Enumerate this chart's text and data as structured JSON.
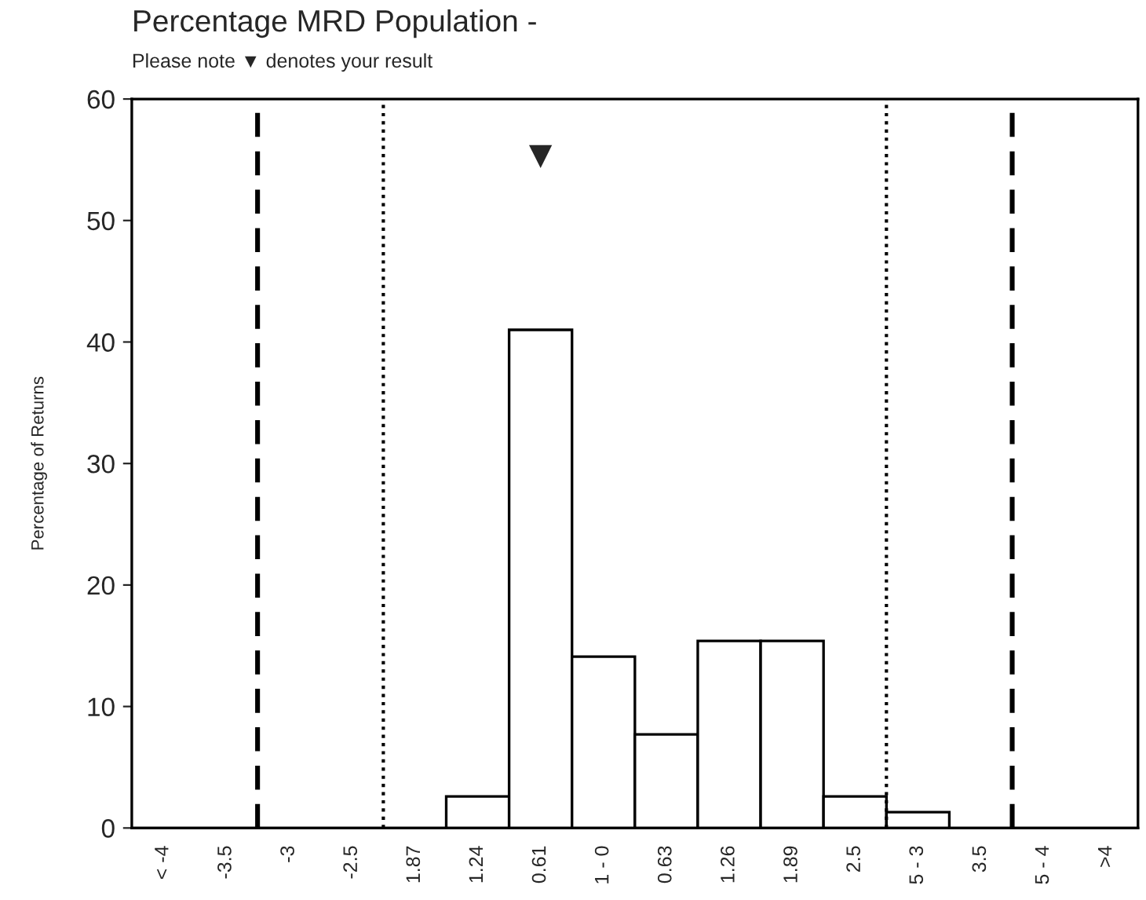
{
  "chart_data": {
    "type": "bar",
    "title": "Percentage MRD Population -",
    "subtitle": "Please note ▼ denotes your result",
    "ylabel": "Percentage of Returns",
    "categories": [
      "< -4",
      "-3.5",
      "-3",
      "-2.5",
      "1.87",
      "1.24",
      "0.61",
      "1 - 0",
      "0.63",
      "1.26",
      "1.89",
      "2.5",
      "5 - 3",
      "3.5",
      "5 - 4",
      ">4"
    ],
    "values": [
      0,
      0,
      0,
      0,
      0,
      2.6,
      41,
      14.1,
      7.7,
      15.4,
      15.4,
      2.6,
      1.3,
      0,
      0,
      0
    ],
    "color": "#ffffff",
    "ylim": [
      0,
      60
    ],
    "yticks": [
      0,
      10,
      20,
      30,
      40,
      50,
      60
    ],
    "grid": false,
    "annotations": [
      "▼"
    ]
  }
}
